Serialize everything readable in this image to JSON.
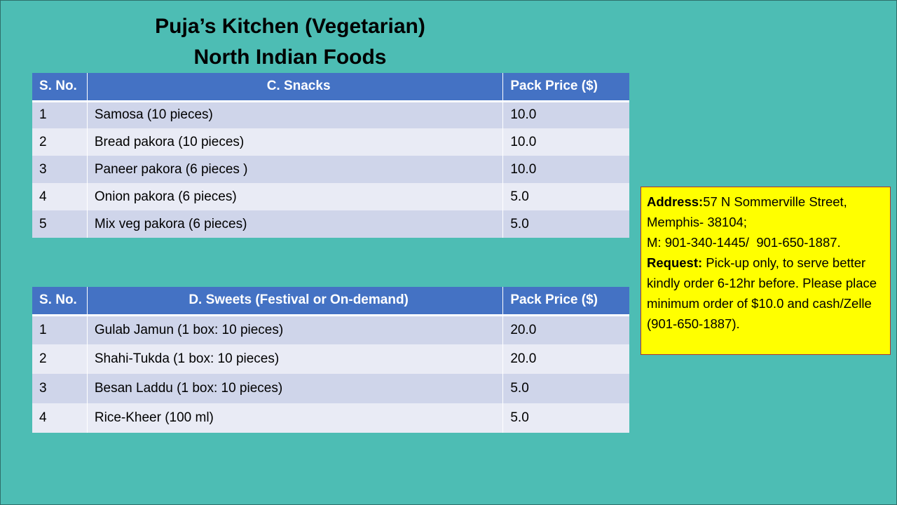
{
  "header": {
    "title_line1": "Puja’s Kitchen (Vegetarian)",
    "title_line2": "North Indian Foods"
  },
  "tables": [
    {
      "columns": [
        "S. No.",
        "C. Snacks",
        "Pack Price ($)"
      ],
      "rows": [
        [
          "1",
          "Samosa (10 pieces)",
          "10.0"
        ],
        [
          "2",
          "Bread pakora (10 pieces)",
          "10.0"
        ],
        [
          "3",
          "Paneer pakora (6 pieces )",
          "10.0"
        ],
        [
          "4",
          "Onion pakora (6 pieces)",
          "5.0"
        ],
        [
          "5",
          "Mix veg pakora (6 pieces)",
          "5.0"
        ]
      ]
    },
    {
      "columns": [
        "S. No.",
        "D. Sweets (Festival or On-demand)",
        "Pack Price ($)"
      ],
      "rows": [
        [
          "1",
          "Gulab Jamun (1 box: 10 pieces)",
          "20.0"
        ],
        [
          "2",
          "Shahi-Tukda (1 box: 10 pieces)",
          "20.0"
        ],
        [
          "3",
          "Besan Laddu (1 box: 10 pieces)",
          "5.0"
        ],
        [
          "4",
          "Rice-Kheer (100 ml)",
          "5.0"
        ]
      ]
    }
  ],
  "info": {
    "address_label": "Address:",
    "address": "57 N Sommerville Street, Memphis- 38104;",
    "phone": "M: 901-340-1445/  901-650-1887.",
    "request_label": "Request:",
    "request": "Pick-up only, to serve better kindly order 6-12hr before. Please place minimum order of $10.0 and cash/Zelle (901-650-1887)."
  }
}
